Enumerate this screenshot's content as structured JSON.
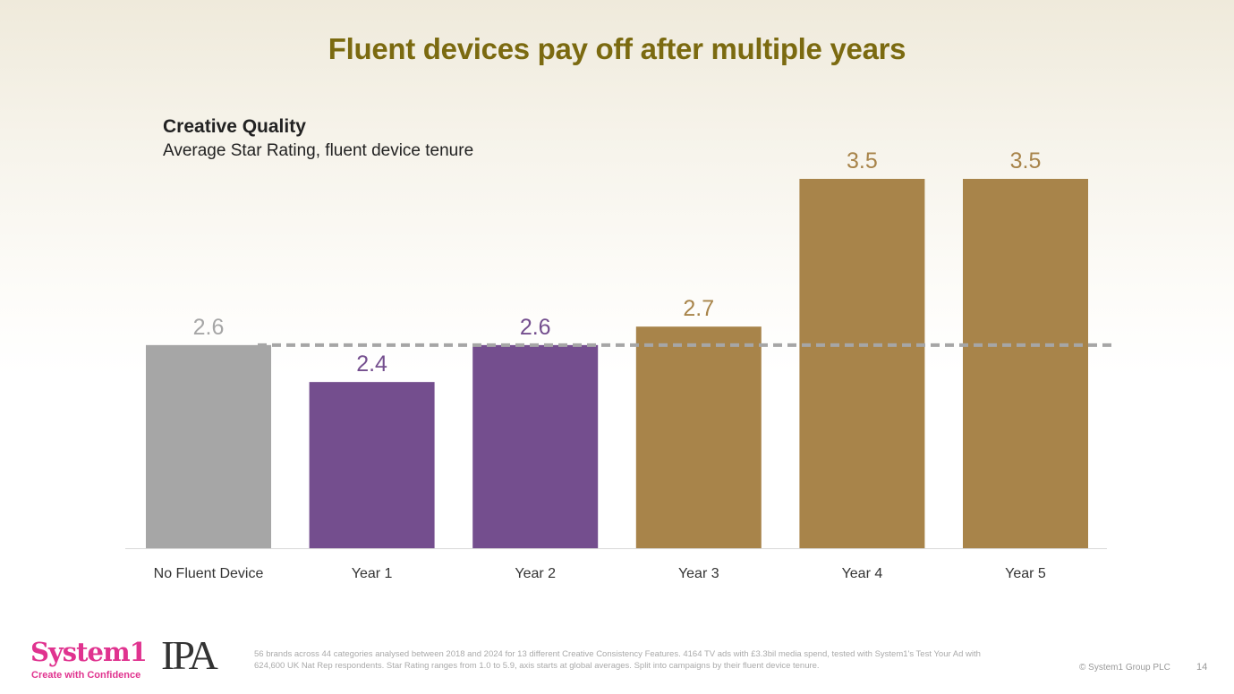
{
  "slide": {
    "title": "Fluent devices pay off after multiple years",
    "footnote": "56 brands across 44 categories analysed between 2018 and 2024 for 13 different Creative Consistency Features. 4164 TV ads with £3.3bil media spend, tested with System1's Test Your Ad with 624,600 UK Nat Rep respondents. Star Rating ranges from 1.0 to 5.9, axis starts at global averages. Split into campaigns by their fluent device tenure.",
    "copyright": "© System1 Group PLC",
    "page_number": "14",
    "logo_system1": "System1",
    "logo_tagline": "Create with Confidence",
    "logo_ipa": "IPA"
  },
  "chart_data": {
    "type": "bar",
    "title": "Creative Quality",
    "subtitle": "Average Star Rating, fluent device tenure",
    "categories": [
      "No Fluent Device",
      "Year 1",
      "Year 2",
      "Year 3",
      "Year 4",
      "Year 5"
    ],
    "values": [
      2.6,
      2.4,
      2.6,
      2.7,
      3.5,
      3.5
    ],
    "value_labels": [
      "2.6",
      "2.4",
      "2.6",
      "2.7",
      "3.5",
      "3.5"
    ],
    "colors": [
      "#a6a6a6",
      "#744e8e",
      "#744e8e",
      "#a8844a",
      "#a8844a",
      "#a8844a"
    ],
    "label_colors": [
      "#a6a6a6",
      "#744e8e",
      "#744e8e",
      "#a8844a",
      "#a8844a",
      "#a8844a"
    ],
    "reference_line": 2.6,
    "reference_color": "#a6a6a6",
    "ylim": [
      1.5,
      3.5
    ],
    "xlabel": "",
    "ylabel": "",
    "grid": false
  }
}
